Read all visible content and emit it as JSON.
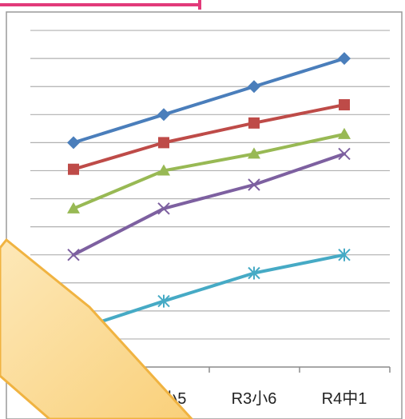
{
  "chart_data": {
    "type": "line",
    "title": "",
    "xlabel": "",
    "ylabel": "",
    "categories": [
      "",
      "R2小5",
      "R3小6",
      "R4中1"
    ],
    "series": [
      {
        "color": "#4a7ebb",
        "marker": "diamond",
        "values": [
          8,
          9,
          10,
          11
        ]
      },
      {
        "color": "#be4b48",
        "marker": "square",
        "values": [
          7.05,
          8,
          8.7,
          9.35
        ]
      },
      {
        "color": "#98b954",
        "marker": "triangle",
        "values": [
          5.65,
          7,
          7.6,
          8.3
        ]
      },
      {
        "color": "#7d60a0",
        "marker": "x",
        "values": [
          4,
          5.65,
          6.5,
          7.6
        ]
      },
      {
        "color": "#46aac5",
        "marker": "star",
        "values": [
          1.3,
          2.35,
          3.35,
          4
        ]
      }
    ],
    "ylim": [
      0,
      13
    ],
    "grid": true,
    "legend": "none"
  },
  "colors": {
    "accent_pink": "#e23a7a",
    "callout_fill": "#fbdc96",
    "callout_border": "#f0b341",
    "grid": "#b0b0b0"
  }
}
